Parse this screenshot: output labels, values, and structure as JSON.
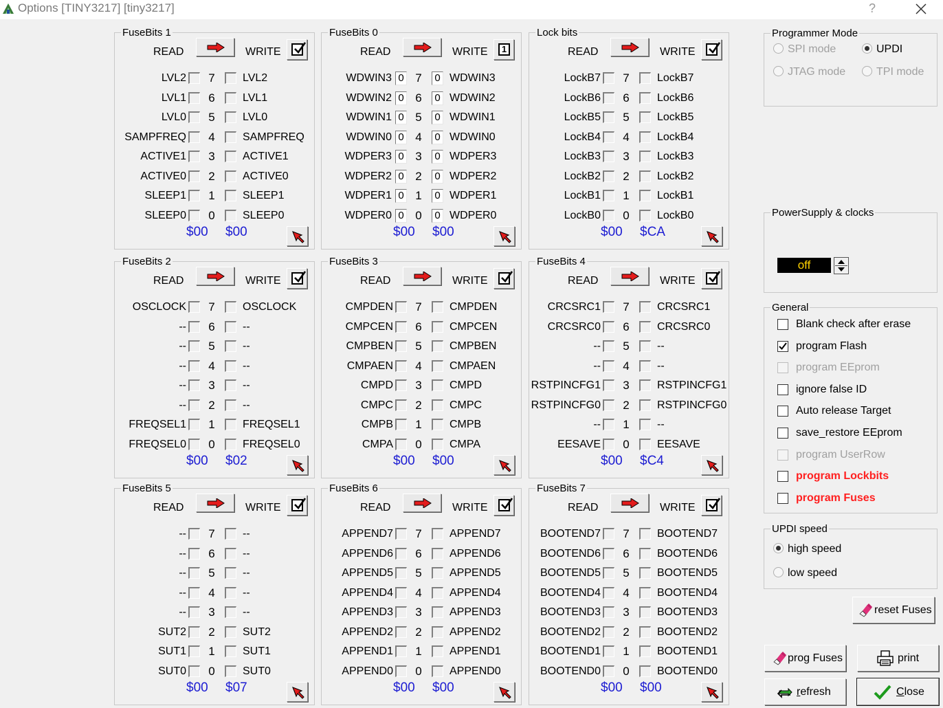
{
  "window": {
    "title": "Options [TINY3217] [tiny3217]",
    "help": "?"
  },
  "labels": {
    "read": "READ",
    "write": "WRITE"
  },
  "fuse_groups": [
    {
      "title": "FuseBits 1",
      "write_state": "check",
      "rows": [
        {
          "left": "LVL2",
          "bit": "7",
          "right": "LVL2"
        },
        {
          "left": "LVL1",
          "bit": "6",
          "right": "LVL1"
        },
        {
          "left": "LVL0",
          "bit": "5",
          "right": "LVL0"
        },
        {
          "left": "SAMPFREQ",
          "bit": "4",
          "right": "SAMPFREQ"
        },
        {
          "left": "ACTIVE1",
          "bit": "3",
          "right": "ACTIVE1"
        },
        {
          "left": "ACTIVE0",
          "bit": "2",
          "right": "ACTIVE0"
        },
        {
          "left": "SLEEP1",
          "bit": "1",
          "right": "SLEEP1"
        },
        {
          "left": "SLEEP0",
          "bit": "0",
          "right": "SLEEP0"
        }
      ],
      "read_hex": "$00",
      "write_hex": "$00"
    },
    {
      "title": "FuseBits 0",
      "write_state": "1",
      "value_boxes": true,
      "rows": [
        {
          "left": "WDWIN3",
          "lval": "0",
          "bit": "7",
          "rval": "0",
          "right": "WDWIN3"
        },
        {
          "left": "WDWIN2",
          "lval": "0",
          "bit": "6",
          "rval": "0",
          "right": "WDWIN2"
        },
        {
          "left": "WDWIN1",
          "lval": "0",
          "bit": "5",
          "rval": "0",
          "right": "WDWIN1"
        },
        {
          "left": "WDWIN0",
          "lval": "0",
          "bit": "4",
          "rval": "0",
          "right": "WDWIN0"
        },
        {
          "left": "WDPER3",
          "lval": "0",
          "bit": "3",
          "rval": "0",
          "right": "WDPER3"
        },
        {
          "left": "WDPER2",
          "lval": "0",
          "bit": "2",
          "rval": "0",
          "right": "WDPER2"
        },
        {
          "left": "WDPER1",
          "lval": "0",
          "bit": "1",
          "rval": "0",
          "right": "WDPER1"
        },
        {
          "left": "WDPER0",
          "lval": "0",
          "bit": "0",
          "rval": "0",
          "right": "WDPER0"
        }
      ],
      "read_hex": "$00",
      "write_hex": "$00"
    },
    {
      "title": "Lock bits",
      "write_state": "check",
      "rows": [
        {
          "left": "LockB7",
          "bit": "7",
          "right": "LockB7"
        },
        {
          "left": "LockB6",
          "bit": "6",
          "right": "LockB6"
        },
        {
          "left": "LockB5",
          "bit": "5",
          "right": "LockB5"
        },
        {
          "left": "LockB4",
          "bit": "4",
          "right": "LockB4"
        },
        {
          "left": "LockB3",
          "bit": "3",
          "right": "LockB3"
        },
        {
          "left": "LockB2",
          "bit": "2",
          "right": "LockB2"
        },
        {
          "left": "LockB1",
          "bit": "1",
          "right": "LockB1"
        },
        {
          "left": "LockB0",
          "bit": "0",
          "right": "LockB0"
        }
      ],
      "read_hex": "$00",
      "write_hex": "$CA"
    },
    {
      "title": "FuseBits 2",
      "write_state": "check",
      "rows": [
        {
          "left": "OSCLOCK",
          "bit": "7",
          "right": "OSCLOCK"
        },
        {
          "left": "--",
          "bit": "6",
          "right": "--"
        },
        {
          "left": "--",
          "bit": "5",
          "right": "--"
        },
        {
          "left": "--",
          "bit": "4",
          "right": "--"
        },
        {
          "left": "--",
          "bit": "3",
          "right": "--"
        },
        {
          "left": "--",
          "bit": "2",
          "right": "--"
        },
        {
          "left": "FREQSEL1",
          "bit": "1",
          "right": "FREQSEL1"
        },
        {
          "left": "FREQSEL0",
          "bit": "0",
          "right": "FREQSEL0"
        }
      ],
      "read_hex": "$00",
      "write_hex": "$02"
    },
    {
      "title": "FuseBits 3",
      "write_state": "check",
      "rows": [
        {
          "left": "CMPDEN",
          "bit": "7",
          "right": "CMPDEN"
        },
        {
          "left": "CMPCEN",
          "bit": "6",
          "right": "CMPCEN"
        },
        {
          "left": "CMPBEN",
          "bit": "5",
          "right": "CMPBEN"
        },
        {
          "left": "CMPAEN",
          "bit": "4",
          "right": "CMPAEN"
        },
        {
          "left": "CMPD",
          "bit": "3",
          "right": "CMPD"
        },
        {
          "left": "CMPC",
          "bit": "2",
          "right": "CMPC"
        },
        {
          "left": "CMPB",
          "bit": "1",
          "right": "CMPB"
        },
        {
          "left": "CMPA",
          "bit": "0",
          "right": "CMPA"
        }
      ],
      "read_hex": "$00",
      "write_hex": "$00"
    },
    {
      "title": "FuseBits 4",
      "write_state": "check",
      "rows": [
        {
          "left": "CRCSRC1",
          "bit": "7",
          "right": "CRCSRC1"
        },
        {
          "left": "CRCSRC0",
          "bit": "6",
          "right": "CRCSRC0"
        },
        {
          "left": "--",
          "bit": "5",
          "right": "--"
        },
        {
          "left": "--",
          "bit": "4",
          "right": "--"
        },
        {
          "left": "RSTPINCFG1",
          "bit": "3",
          "right": "RSTPINCFG1"
        },
        {
          "left": "RSTPINCFG0",
          "bit": "2",
          "right": "RSTPINCFG0"
        },
        {
          "left": "--",
          "bit": "1",
          "right": "--"
        },
        {
          "left": "EESAVE",
          "bit": "0",
          "right": "EESAVE"
        }
      ],
      "read_hex": "$00",
      "write_hex": "$C4"
    },
    {
      "title": "FuseBits 5",
      "write_state": "check",
      "rows": [
        {
          "left": "--",
          "bit": "7",
          "right": "--"
        },
        {
          "left": "--",
          "bit": "6",
          "right": "--"
        },
        {
          "left": "--",
          "bit": "5",
          "right": "--"
        },
        {
          "left": "--",
          "bit": "4",
          "right": "--"
        },
        {
          "left": "--",
          "bit": "3",
          "right": "--"
        },
        {
          "left": "SUT2",
          "bit": "2",
          "right": "SUT2"
        },
        {
          "left": "SUT1",
          "bit": "1",
          "right": "SUT1"
        },
        {
          "left": "SUT0",
          "bit": "0",
          "right": "SUT0"
        }
      ],
      "read_hex": "$00",
      "write_hex": "$07"
    },
    {
      "title": "FuseBits 6",
      "write_state": "check",
      "rows": [
        {
          "left": "APPEND7",
          "bit": "7",
          "right": "APPEND7"
        },
        {
          "left": "APPEND6",
          "bit": "6",
          "right": "APPEND6"
        },
        {
          "left": "APPEND5",
          "bit": "5",
          "right": "APPEND5"
        },
        {
          "left": "APPEND4",
          "bit": "4",
          "right": "APPEND4"
        },
        {
          "left": "APPEND3",
          "bit": "3",
          "right": "APPEND3"
        },
        {
          "left": "APPEND2",
          "bit": "2",
          "right": "APPEND2"
        },
        {
          "left": "APPEND1",
          "bit": "1",
          "right": "APPEND1"
        },
        {
          "left": "APPEND0",
          "bit": "0",
          "right": "APPEND0"
        }
      ],
      "read_hex": "$00",
      "write_hex": "$00"
    },
    {
      "title": "FuseBits 7",
      "write_state": "check",
      "rows": [
        {
          "left": "BOOTEND7",
          "bit": "7",
          "right": "BOOTEND7"
        },
        {
          "left": "BOOTEND6",
          "bit": "6",
          "right": "BOOTEND6"
        },
        {
          "left": "BOOTEND5",
          "bit": "5",
          "right": "BOOTEND5"
        },
        {
          "left": "BOOTEND4",
          "bit": "4",
          "right": "BOOTEND4"
        },
        {
          "left": "BOOTEND3",
          "bit": "3",
          "right": "BOOTEND3"
        },
        {
          "left": "BOOTEND2",
          "bit": "2",
          "right": "BOOTEND2"
        },
        {
          "left": "BOOTEND1",
          "bit": "1",
          "right": "BOOTEND1"
        },
        {
          "left": "BOOTEND0",
          "bit": "0",
          "right": "BOOTEND0"
        }
      ],
      "read_hex": "$00",
      "write_hex": "$00"
    }
  ],
  "programmer_mode": {
    "title": "Programmer Mode",
    "spi": "SPI mode",
    "updi": "UPDI",
    "jtag": "JTAG mode",
    "tpi": "TPI mode",
    "selected": "UPDI"
  },
  "power": {
    "title": "PowerSupply & clocks",
    "value": "off"
  },
  "general": {
    "title": "General",
    "options": [
      {
        "label": "Blank check after erase",
        "checked": false,
        "disabled": false,
        "red": false
      },
      {
        "label": "program Flash",
        "checked": true,
        "disabled": false,
        "red": false
      },
      {
        "label": "program EEprom",
        "checked": false,
        "disabled": true,
        "red": false
      },
      {
        "label": "ignore false ID",
        "checked": false,
        "disabled": false,
        "red": false
      },
      {
        "label": "Auto release Target",
        "checked": false,
        "disabled": false,
        "red": false
      },
      {
        "label": "save_restore EEprom",
        "checked": false,
        "disabled": false,
        "red": false
      },
      {
        "label": "program UserRow",
        "checked": false,
        "disabled": true,
        "red": false
      },
      {
        "label": "program Lockbits",
        "checked": false,
        "disabled": false,
        "red": true
      },
      {
        "label": "program Fuses",
        "checked": false,
        "disabled": false,
        "red": true
      }
    ]
  },
  "updi_speed": {
    "title": "UPDI speed",
    "high": "high speed",
    "low": "low speed",
    "selected": "high"
  },
  "buttons": {
    "reset_fuses": "reset Fuses",
    "prog_fuses": "prog Fuses",
    "print": "print",
    "refresh_mn": "r",
    "refresh_rest": "efresh",
    "close_mn": "C",
    "close_rest": "lose"
  },
  "colors": {
    "hex_blue": "#1c1cd2",
    "red_option": "#ff2020",
    "power_text": "#ffd200"
  }
}
